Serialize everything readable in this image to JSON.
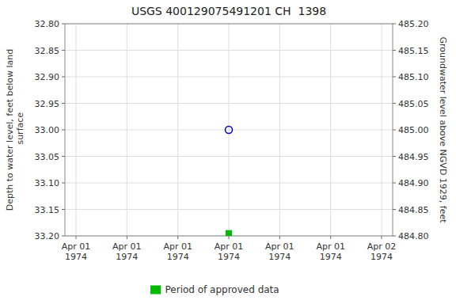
{
  "chart_data": {
    "type": "scatter",
    "title": "USGS 400129075491201 CH  1398",
    "ylabel": "Depth to water level, feet below land\n surface",
    "y2label": "Groundwater level above NGVD 1929, feet",
    "categories": [
      "Apr 01\n1974",
      "Apr 01\n1974",
      "Apr 01\n1974",
      "Apr 01\n1974",
      "Apr 01\n1974",
      "Apr 01\n1974",
      "Apr 02\n1974"
    ],
    "series": [
      {
        "color": "#0000cc",
        "marker": "circle",
        "values": [
          null,
          null,
          null,
          33.0,
          null,
          null,
          null
        ]
      },
      {
        "name": "Period of approved data",
        "color": "#00bb00",
        "marker": "square",
        "values": [
          null,
          null,
          null,
          33.195,
          null,
          null,
          null
        ]
      }
    ],
    "ylim": [
      33.2,
      32.8
    ],
    "yticks": [
      {
        "value": 32.8,
        "label": "32.80"
      },
      {
        "value": 32.85,
        "label": "32.85"
      },
      {
        "value": 32.9,
        "label": "32.90"
      },
      {
        "value": 32.95,
        "label": "32.95"
      },
      {
        "value": 33.0,
        "label": "33.00"
      },
      {
        "value": 33.05,
        "label": "33.05"
      },
      {
        "value": 33.1,
        "label": "33.10"
      },
      {
        "value": 33.15,
        "label": "33.15"
      },
      {
        "value": 33.2,
        "label": "33.20"
      }
    ],
    "y2lim": [
      484.8,
      485.2
    ],
    "y2ticks": [
      {
        "value": 485.2,
        "label": "485.20"
      },
      {
        "value": 485.15,
        "label": "485.15"
      },
      {
        "value": 485.1,
        "label": "485.10"
      },
      {
        "value": 485.05,
        "label": "485.05"
      },
      {
        "value": 485.0,
        "label": "485.00"
      },
      {
        "value": 484.95,
        "label": "484.95"
      },
      {
        "value": 484.9,
        "label": "484.90"
      },
      {
        "value": 484.85,
        "label": "484.85"
      },
      {
        "value": 484.8,
        "label": "484.80"
      }
    ],
    "grid": true,
    "legend": "bottom"
  }
}
